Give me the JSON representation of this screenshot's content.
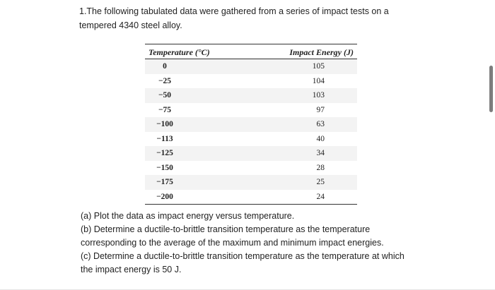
{
  "problem": {
    "intro_line1": "1.The following tabulated data were gathered from a series of impact tests on a",
    "intro_line2": "tempered 4340 steel alloy."
  },
  "table": {
    "headers": [
      "Temperature (°C)",
      "Impact Energy (J)"
    ],
    "rows": [
      {
        "temperature": "0",
        "energy": "105"
      },
      {
        "temperature": "−25",
        "energy": "104"
      },
      {
        "temperature": "−50",
        "energy": "103"
      },
      {
        "temperature": "−75",
        "energy": "97"
      },
      {
        "temperature": "−100",
        "energy": "63"
      },
      {
        "temperature": "−113",
        "energy": "40"
      },
      {
        "temperature": "−125",
        "energy": "34"
      },
      {
        "temperature": "−150",
        "energy": "28"
      },
      {
        "temperature": "−175",
        "energy": "25"
      },
      {
        "temperature": "−200",
        "energy": "24"
      }
    ]
  },
  "questions": {
    "a": "(a) Plot the data as impact energy versus temperature.",
    "b_line1": "(b) Determine a ductile-to-brittle transition temperature as the temperature",
    "b_line2": "corresponding to the average of the maximum and minimum impact energies.",
    "c_line1": "(c) Determine a ductile-to-brittle transition temperature as the temperature at which",
    "c_line2": "the impact energy is 50 J."
  }
}
